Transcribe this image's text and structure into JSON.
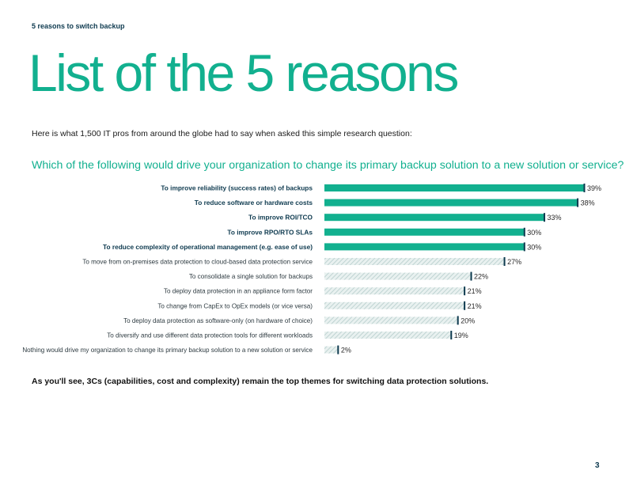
{
  "header": {
    "breadcrumb": "5 reasons to switch backup"
  },
  "title": "List of the 5 reasons",
  "intro": "Here is what 1,500 IT pros from around the globe had to say when asked this simple research question:",
  "question": "Which of the following would drive your organization to change its primary backup solution to a new solution or service?",
  "footnote": "As you'll see, 3Cs (capabilities, cost and complexity) remain the top themes for switching data protection solutions.",
  "page_number": "3",
  "colors": {
    "accent": "#12b08f",
    "dark": "#0e3a4f",
    "hatch": "#b5cdcb",
    "hatch_bg": "#e9f1f0"
  },
  "chart_data": {
    "type": "bar",
    "orientation": "horizontal",
    "categories": [
      "To improve reliability (success rates) of backups",
      "To reduce software or hardware costs",
      "To improve ROI/TCO",
      "To improve RPO/RTO SLAs",
      "To reduce complexity of operational management (e.g. ease of use)",
      "To move from on-premises data protection to cloud-based data protection service",
      "To consolidate a single solution for backups",
      "To deploy data protection in an appliance form factor",
      "To change from CapEx to OpEx models (or vice versa)",
      "To deploy data protection as software-only (on hardware of choice)",
      "To diversify and use different data protection tools for different workloads",
      "Nothing would drive my organization to change its primary backup solution to a new solution or service"
    ],
    "values": [
      39,
      38,
      33,
      30,
      30,
      27,
      22,
      21,
      21,
      20,
      19,
      2
    ],
    "value_labels": [
      "39%",
      "38%",
      "33%",
      "30%",
      "30%",
      "27%",
      "22%",
      "21%",
      "21%",
      "20%",
      "19%",
      "2%"
    ],
    "highlighted": [
      true,
      true,
      true,
      true,
      true,
      false,
      false,
      false,
      false,
      false,
      false,
      false
    ],
    "xlim": [
      0,
      39
    ],
    "grid": false
  }
}
